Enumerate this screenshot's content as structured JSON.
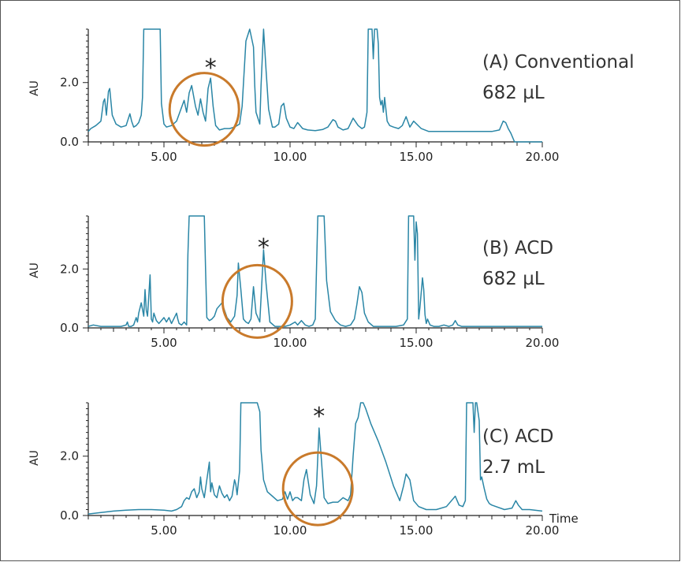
{
  "colors": {
    "trace": "#2a86a6",
    "circle": "#c97a2b",
    "frame": "#555555"
  },
  "shared": {
    "xlabel": "Time",
    "ylabel": "AU"
  },
  "chart_data": [
    {
      "type": "line",
      "panel": "A",
      "label_line1": "(A) Conventional",
      "label_line2": "682 µL",
      "xlabel": "",
      "ylabel": "AU",
      "xlim": [
        2.0,
        20.0
      ],
      "ylim": [
        0.0,
        3.8
      ],
      "x_ticks": [
        5.0,
        10.0,
        15.0,
        20.0
      ],
      "x_tick_labels": [
        "5.00",
        "10.00",
        "15.00",
        "20.00"
      ],
      "y_ticks": [
        0.0,
        2.0
      ],
      "y_tick_labels": [
        "0.0",
        "2.0"
      ],
      "marker": "*",
      "marker_x": 6.85,
      "highlight_circle": {
        "x": 6.6,
        "y": 1.1
      },
      "series": [
        {
          "x": [
            2.0,
            2.1,
            2.3,
            2.5,
            2.6,
            2.65,
            2.72,
            2.8,
            2.85,
            2.95,
            3.1,
            3.3,
            3.5,
            3.65,
            3.72,
            3.8,
            3.9,
            4.0,
            4.1,
            4.15,
            4.2,
            4.25,
            4.3,
            4.35,
            4.6,
            4.75,
            4.8,
            4.85,
            4.9,
            5.0,
            5.1,
            5.3,
            5.5,
            5.65,
            5.8,
            5.9,
            6.0,
            6.1,
            6.25,
            6.35,
            6.45,
            6.55,
            6.65,
            6.75,
            6.85,
            6.95,
            7.05,
            7.2,
            7.4,
            7.6,
            7.8,
            8.0,
            8.1,
            8.25,
            8.4,
            8.55,
            8.6,
            8.65,
            8.8,
            8.85,
            8.95,
            9.05,
            9.15,
            9.25,
            9.3,
            9.4,
            9.55,
            9.65,
            9.75,
            9.85,
            10.0,
            10.15,
            10.3,
            10.5,
            10.7,
            11.0,
            11.3,
            11.5,
            11.7,
            11.8,
            11.9,
            12.1,
            12.3,
            12.5,
            12.7,
            12.85,
            12.95,
            13.05,
            13.1,
            13.15,
            13.25,
            13.3,
            13.35,
            13.45,
            13.5,
            13.55,
            13.6,
            13.65,
            13.7,
            13.75,
            13.85,
            13.95,
            14.1,
            14.3,
            14.45,
            14.6,
            14.75,
            14.9,
            15.2,
            15.5,
            16.0,
            16.5,
            17.0,
            17.5,
            18.0,
            18.3,
            18.45,
            18.55,
            18.65,
            18.75,
            18.9,
            19.0,
            19.2,
            20.0
          ],
          "y": [
            0.35,
            0.45,
            0.55,
            0.7,
            1.35,
            1.45,
            0.9,
            1.7,
            1.8,
            0.9,
            0.6,
            0.5,
            0.55,
            0.95,
            0.7,
            0.5,
            0.55,
            0.65,
            0.9,
            1.5,
            3.8,
            3.8,
            3.8,
            3.8,
            3.8,
            3.8,
            3.8,
            3.8,
            1.3,
            0.6,
            0.5,
            0.55,
            0.7,
            1.05,
            1.4,
            1.0,
            1.65,
            1.9,
            1.2,
            0.9,
            1.45,
            1.0,
            0.7,
            1.8,
            2.15,
            1.2,
            0.55,
            0.4,
            0.45,
            0.45,
            0.5,
            0.6,
            1.2,
            3.4,
            3.8,
            3.2,
            1.9,
            1.0,
            0.6,
            1.9,
            3.8,
            2.4,
            1.1,
            0.7,
            0.5,
            0.5,
            0.6,
            1.2,
            1.3,
            0.8,
            0.5,
            0.45,
            0.65,
            0.45,
            0.4,
            0.38,
            0.42,
            0.5,
            0.75,
            0.7,
            0.5,
            0.4,
            0.45,
            0.8,
            0.55,
            0.45,
            0.5,
            1.0,
            3.8,
            3.8,
            3.8,
            2.8,
            3.8,
            3.8,
            3.3,
            1.5,
            1.25,
            1.4,
            1.0,
            1.5,
            0.7,
            0.55,
            0.5,
            0.45,
            0.55,
            0.85,
            0.5,
            0.7,
            0.45,
            0.35,
            0.35,
            0.35,
            0.35,
            0.35,
            0.35,
            0.4,
            0.7,
            0.65,
            0.45,
            0.3,
            0.0,
            0.0,
            0.0,
            0.0
          ]
        }
      ]
    },
    {
      "type": "line",
      "panel": "B",
      "label_line1": "(B) ACD",
      "label_line2": "682 µL",
      "xlabel": "",
      "ylabel": "AU",
      "xlim": [
        2.0,
        20.0
      ],
      "ylim": [
        0.0,
        3.8
      ],
      "x_ticks": [
        5.0,
        10.0,
        15.0,
        20.0
      ],
      "x_tick_labels": [
        "5.00",
        "10.00",
        "15.00",
        "20.00"
      ],
      "y_ticks": [
        0.0,
        2.0
      ],
      "y_tick_labels": [
        "0.0",
        "2.0"
      ],
      "marker": "*",
      "marker_x": 8.95,
      "highlight_circle": {
        "x": 8.7,
        "y": 0.9
      },
      "series": [
        {
          "x": [
            2.0,
            2.2,
            2.5,
            2.8,
            3.0,
            3.3,
            3.5,
            3.55,
            3.6,
            3.7,
            3.8,
            3.9,
            3.95,
            4.0,
            4.1,
            4.2,
            4.25,
            4.3,
            4.35,
            4.45,
            4.5,
            4.55,
            4.6,
            4.7,
            4.8,
            4.9,
            5.0,
            5.1,
            5.2,
            5.3,
            5.5,
            5.55,
            5.6,
            5.7,
            5.8,
            5.9,
            5.95,
            6.0,
            6.1,
            6.2,
            6.5,
            6.6,
            6.65,
            6.7,
            6.8,
            6.9,
            7.0,
            7.1,
            7.3,
            7.5,
            7.65,
            7.8,
            7.9,
            7.95,
            8.05,
            8.15,
            8.25,
            8.35,
            8.45,
            8.55,
            8.65,
            8.8,
            8.95,
            9.05,
            9.2,
            9.4,
            9.6,
            9.8,
            10.0,
            10.2,
            10.3,
            10.45,
            10.6,
            10.75,
            10.9,
            11.0,
            11.1,
            11.15,
            11.25,
            11.35,
            11.45,
            11.6,
            11.8,
            12.0,
            12.2,
            12.4,
            12.55,
            12.65,
            12.75,
            12.85,
            12.95,
            13.1,
            13.3,
            13.6,
            13.9,
            14.2,
            14.5,
            14.65,
            14.7,
            14.75,
            14.85,
            14.9,
            14.95,
            15.0,
            15.05,
            15.1,
            15.15,
            15.25,
            15.3,
            15.35,
            15.4,
            15.45,
            15.55,
            15.7,
            15.9,
            16.1,
            16.3,
            16.45,
            16.55,
            16.65,
            16.8,
            17.0,
            17.5,
            18.0,
            18.5,
            19.0,
            19.5,
            20.0
          ],
          "y": [
            0.05,
            0.1,
            0.05,
            0.05,
            0.05,
            0.05,
            0.1,
            0.2,
            0.05,
            0.05,
            0.1,
            0.35,
            0.2,
            0.5,
            0.85,
            0.4,
            1.3,
            0.6,
            0.4,
            1.8,
            0.3,
            0.2,
            0.5,
            0.25,
            0.15,
            0.25,
            0.35,
            0.2,
            0.35,
            0.15,
            0.5,
            0.3,
            0.15,
            0.1,
            0.2,
            0.1,
            2.5,
            3.8,
            3.8,
            3.8,
            3.8,
            3.8,
            2.0,
            0.35,
            0.25,
            0.3,
            0.4,
            0.65,
            0.85,
            0.35,
            0.2,
            0.4,
            1.1,
            2.2,
            1.3,
            0.3,
            0.2,
            0.15,
            0.3,
            1.4,
            0.5,
            0.2,
            2.65,
            1.5,
            0.2,
            0.05,
            0.05,
            0.05,
            0.1,
            0.2,
            0.1,
            0.25,
            0.1,
            0.05,
            0.1,
            0.3,
            3.8,
            3.8,
            3.8,
            3.8,
            1.6,
            0.55,
            0.25,
            0.1,
            0.05,
            0.1,
            0.3,
            0.8,
            1.4,
            1.2,
            0.5,
            0.2,
            0.05,
            0.05,
            0.05,
            0.05,
            0.1,
            0.3,
            3.8,
            3.8,
            3.8,
            3.8,
            2.3,
            3.6,
            3.2,
            0.3,
            0.7,
            1.7,
            1.3,
            0.45,
            0.15,
            0.3,
            0.1,
            0.05,
            0.05,
            0.1,
            0.05,
            0.1,
            0.25,
            0.1,
            0.05,
            0.05,
            0.05,
            0.05,
            0.05,
            0.05,
            0.05,
            0.05
          ]
        }
      ]
    },
    {
      "type": "line",
      "panel": "C",
      "label_line1": "(C) ACD",
      "label_line2": "2.7 mL",
      "xlabel": "Time",
      "ylabel": "AU",
      "xlim": [
        2.0,
        20.0
      ],
      "ylim": [
        0.0,
        3.8
      ],
      "x_ticks": [
        5.0,
        10.0,
        15.0,
        20.0
      ],
      "x_tick_labels": [
        "5.00",
        "10.00",
        "15.00",
        "20.00"
      ],
      "y_ticks": [
        0.0,
        2.0
      ],
      "y_tick_labels": [
        "0.0",
        "2.0"
      ],
      "marker": "*",
      "marker_x": 11.15,
      "highlight_circle": {
        "x": 11.1,
        "y": 0.9
      },
      "series": [
        {
          "x": [
            2.0,
            2.5,
            3.0,
            3.5,
            4.0,
            4.5,
            5.0,
            5.3,
            5.5,
            5.7,
            5.8,
            5.9,
            6.0,
            6.1,
            6.2,
            6.3,
            6.4,
            6.45,
            6.5,
            6.6,
            6.7,
            6.8,
            6.85,
            6.9,
            7.0,
            7.1,
            7.2,
            7.3,
            7.4,
            7.5,
            7.6,
            7.7,
            7.8,
            7.85,
            7.9,
            8.0,
            8.05,
            8.1,
            8.7,
            8.8,
            8.85,
            8.95,
            9.1,
            9.3,
            9.5,
            9.7,
            9.8,
            9.9,
            10.0,
            10.1,
            10.2,
            10.3,
            10.45,
            10.55,
            10.65,
            10.8,
            10.95,
            11.05,
            11.15,
            11.25,
            11.35,
            11.5,
            11.7,
            11.9,
            12.1,
            12.3,
            12.4,
            12.5,
            12.6,
            12.7,
            12.8,
            12.9,
            13.0,
            13.2,
            13.5,
            13.8,
            14.1,
            14.35,
            14.5,
            14.6,
            14.75,
            14.9,
            15.1,
            15.4,
            15.8,
            16.2,
            16.45,
            16.55,
            16.7,
            16.85,
            16.95,
            17.0,
            17.05,
            17.15,
            17.25,
            17.3,
            17.35,
            17.4,
            17.5,
            17.55,
            17.6,
            17.7,
            17.8,
            17.9,
            18.0,
            18.5,
            18.8,
            18.95,
            19.05,
            19.2,
            19.5,
            20.0
          ],
          "y": [
            0.05,
            0.1,
            0.15,
            0.18,
            0.2,
            0.2,
            0.18,
            0.15,
            0.2,
            0.3,
            0.5,
            0.6,
            0.55,
            0.8,
            0.9,
            0.6,
            0.8,
            1.3,
            0.9,
            0.6,
            1.2,
            1.8,
            0.8,
            1.1,
            0.7,
            0.6,
            1.0,
            0.75,
            0.6,
            0.7,
            0.5,
            0.65,
            1.2,
            1.05,
            0.7,
            1.5,
            3.8,
            3.8,
            3.8,
            3.5,
            2.2,
            1.2,
            0.8,
            0.65,
            0.5,
            0.55,
            0.8,
            0.55,
            0.8,
            0.5,
            0.6,
            0.6,
            0.5,
            1.2,
            1.55,
            0.7,
            0.4,
            1.0,
            2.95,
            1.8,
            0.6,
            0.4,
            0.45,
            0.45,
            0.6,
            0.5,
            0.7,
            2.0,
            3.1,
            3.3,
            3.8,
            3.8,
            3.6,
            3.1,
            2.5,
            1.8,
            1.0,
            0.5,
            1.0,
            1.4,
            1.2,
            0.5,
            0.3,
            0.2,
            0.2,
            0.3,
            0.55,
            0.65,
            0.35,
            0.3,
            0.5,
            3.8,
            3.8,
            3.8,
            3.8,
            2.8,
            3.8,
            3.8,
            3.2,
            1.2,
            1.3,
            0.9,
            0.55,
            0.4,
            0.35,
            0.2,
            0.25,
            0.5,
            0.35,
            0.2,
            0.2,
            0.15
          ]
        }
      ]
    }
  ]
}
